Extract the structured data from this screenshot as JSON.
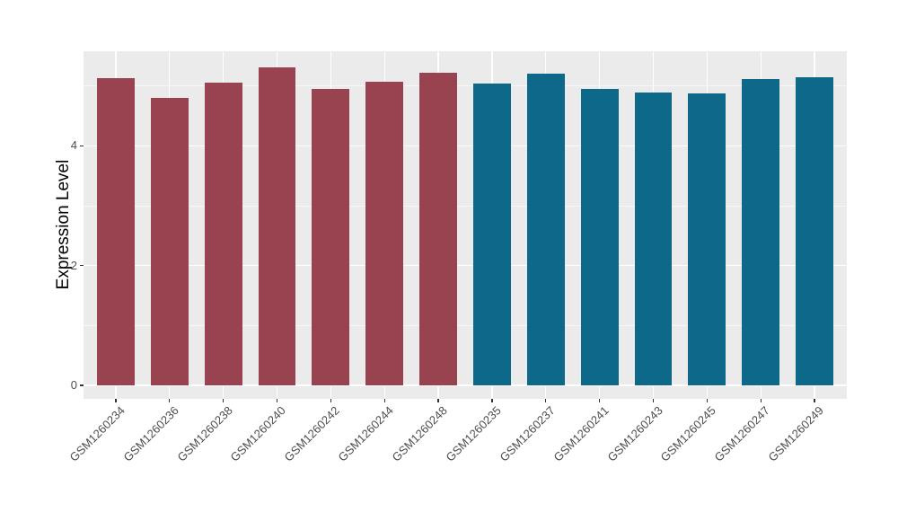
{
  "chart_data": {
    "type": "bar",
    "title": "",
    "xlabel": "",
    "ylabel": "Expression Level",
    "categories": [
      "GSM1260234",
      "GSM1260236",
      "GSM1260238",
      "GSM1260240",
      "GSM1260242",
      "GSM1260244",
      "GSM1260248",
      "GSM1260235",
      "GSM1260237",
      "GSM1260241",
      "GSM1260243",
      "GSM1260245",
      "GSM1260247",
      "GSM1260249"
    ],
    "values": [
      5.13,
      4.8,
      5.06,
      5.31,
      4.95,
      5.07,
      5.22,
      5.04,
      5.21,
      4.95,
      4.89,
      4.87,
      5.11,
      5.15
    ],
    "groups": [
      "maroon",
      "maroon",
      "maroon",
      "maroon",
      "maroon",
      "maroon",
      "maroon",
      "teal",
      "teal",
      "teal",
      "teal",
      "teal",
      "teal",
      "teal"
    ],
    "group_colors": {
      "maroon": "#9A4350",
      "teal": "#0D688A"
    },
    "yticks": [
      {
        "label": "0",
        "value": 0
      },
      {
        "label": "2",
        "value": 2
      },
      {
        "label": "4",
        "value": 4
      }
    ],
    "minor_yticks": [
      1,
      3,
      5
    ],
    "ylim": [
      0,
      5.58
    ],
    "x_label_rotation_deg": -45,
    "legend": "none",
    "grid": "major-and-minor",
    "style": {
      "page_bg": "#FFFFFF",
      "panel_bg": "#EBEBEB",
      "grid_color": "#FFFFFF",
      "axis_text_color": "#4D4D4D",
      "axis_title_color": "#000000",
      "tick_mark_color": "#333333"
    }
  }
}
